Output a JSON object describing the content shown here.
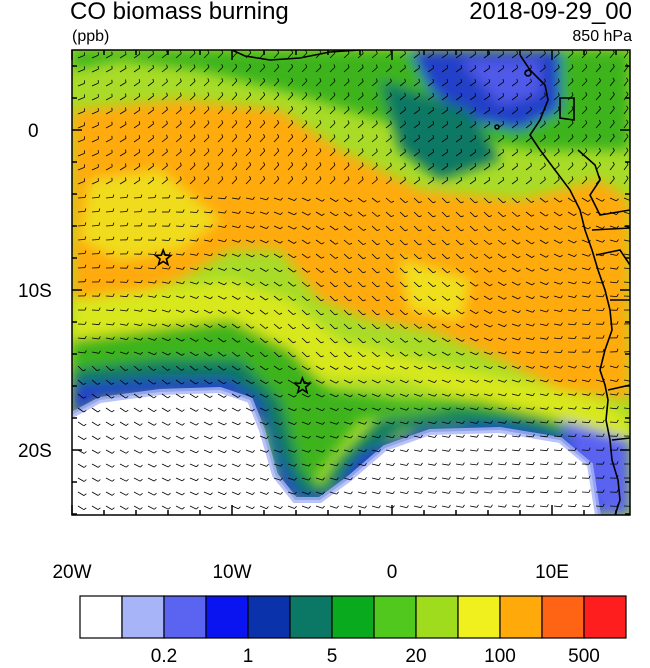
{
  "title": "CO biomass burning",
  "units": "(ppb)",
  "datetime": "2018-09-29_00",
  "level": "850 hPa",
  "lat_ticks": [
    "0",
    "10S",
    "20S"
  ],
  "lon_ticks": [
    "20W",
    "10W",
    "0",
    "10E"
  ],
  "colorbar": {
    "colors": [
      "#ffffff",
      "#a8b4f8",
      "#5a64f0",
      "#0a14f0",
      "#0a32aa",
      "#0a7864",
      "#0aaa1e",
      "#50c81e",
      "#a0dc1e",
      "#f0f01e",
      "#ffaa0a",
      "#ff6414",
      "#ff1e1e"
    ],
    "labels": [
      "0.2",
      "1",
      "5",
      "20",
      "100",
      "500"
    ]
  },
  "markers": [
    {
      "name": "star-1",
      "lon": -14.3,
      "lat": -8.0
    },
    {
      "name": "star-2",
      "lon": -5.6,
      "lat": -16.0
    }
  ]
}
